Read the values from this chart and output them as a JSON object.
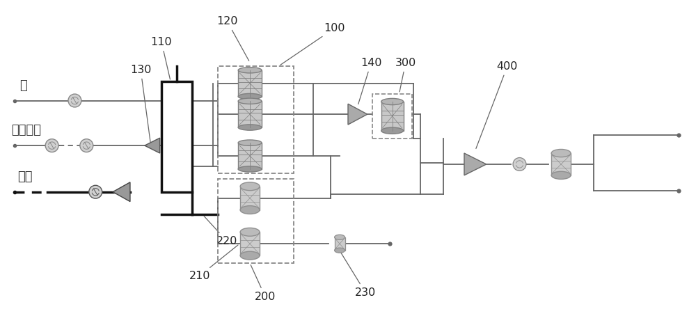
{
  "bg_color": "#ffffff",
  "line_color": "#666666",
  "black_line_color": "#111111",
  "labels": {
    "water": "水",
    "simulated": "模拟组分",
    "air": "空气"
  },
  "numbers": {
    "n100": "100",
    "n110": "110",
    "n120": "120",
    "n130": "130",
    "n140": "140",
    "n200": "200",
    "n210": "210",
    "n220": "220",
    "n230": "230",
    "n300": "300",
    "n400": "400"
  },
  "figsize": [
    10.0,
    4.54
  ],
  "dpi": 100
}
